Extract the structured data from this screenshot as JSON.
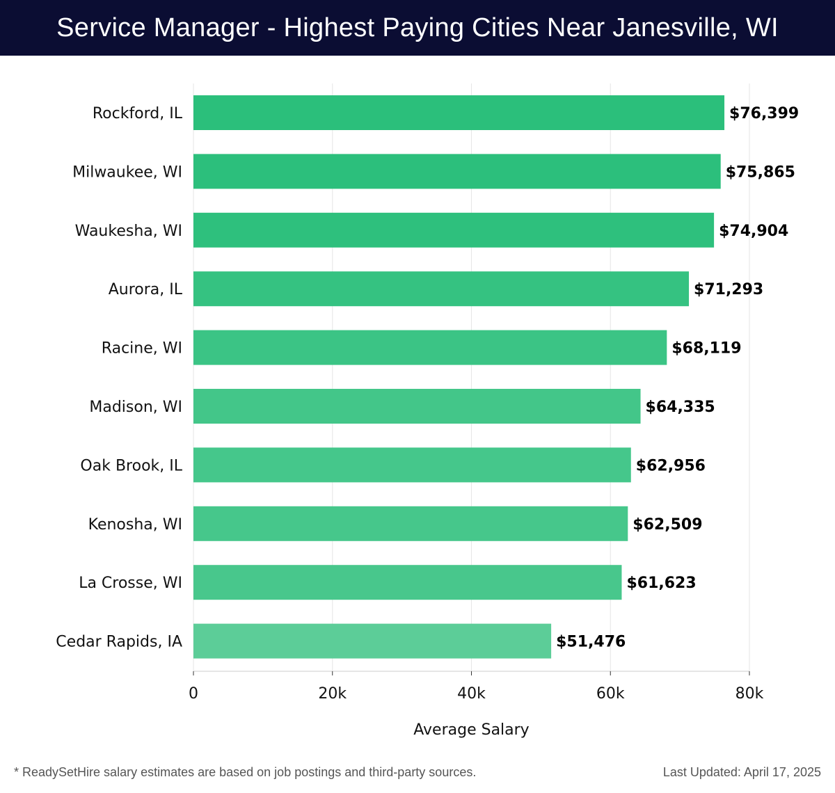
{
  "header": {
    "title": "Service Manager - Highest Paying Cities Near Janesville, WI"
  },
  "chart_data": {
    "type": "bar",
    "orientation": "horizontal",
    "categories": [
      "Rockford, IL",
      "Milwaukee, WI",
      "Waukesha, WI",
      "Aurora, IL",
      "Racine, WI",
      "Madison, WI",
      "Oak Brook, IL",
      "Kenosha, WI",
      "La Crosse, WI",
      "Cedar Rapids, IA"
    ],
    "values": [
      76399,
      75865,
      74904,
      71293,
      68119,
      64335,
      62956,
      62509,
      61623,
      51476
    ],
    "value_labels": [
      "$76,399",
      "$75,865",
      "$74,904",
      "$71,293",
      "$68,119",
      "$64,335",
      "$62,956",
      "$62,509",
      "$61,623",
      "$51,476"
    ],
    "xlabel": "Average Salary",
    "ylabel": "",
    "xlim": [
      0,
      80000
    ],
    "x_ticks": [
      0,
      20000,
      40000,
      60000,
      80000
    ],
    "x_tick_labels": [
      "0",
      "20k",
      "40k",
      "60k",
      "80k"
    ],
    "grid": true,
    "colors": {
      "bar_dark": "#2bbf7b",
      "bar_light": "#5ccd98",
      "grid": "#e6e6e6",
      "axis": "#cccccc"
    }
  },
  "footer": {
    "note": "* ReadySetHire salary estimates are based on job postings and third-party sources.",
    "last_updated": "Last Updated: April 17, 2025"
  }
}
